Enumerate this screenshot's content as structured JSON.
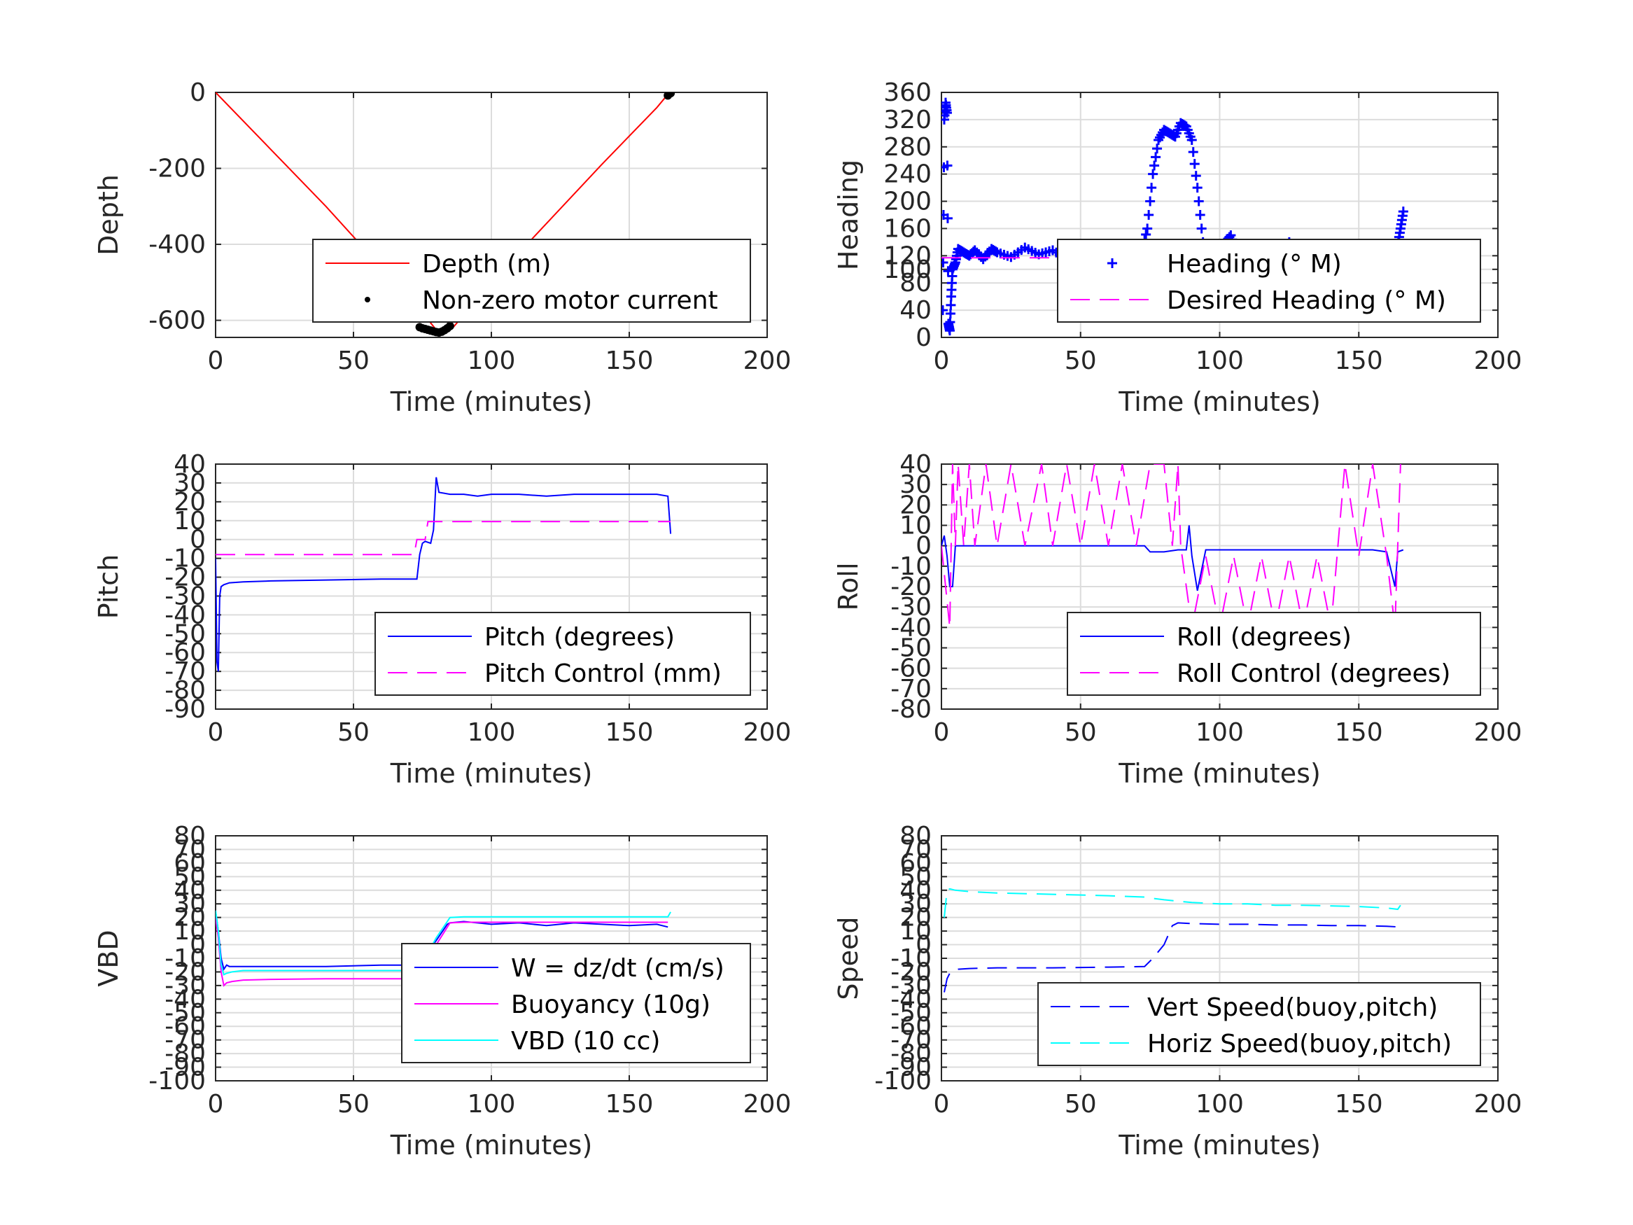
{
  "chart_data": [
    {
      "id": "depth",
      "type": "line",
      "xlabel": "Time (minutes)",
      "ylabel": "Depth",
      "xlim": [
        0,
        200
      ],
      "ylim": [
        -645,
        0
      ],
      "xticks": [
        0,
        50,
        100,
        150,
        200
      ],
      "yticks": [
        -600,
        -400,
        -200,
        0
      ],
      "xticklabels": [
        "0",
        "50",
        "100",
        "150",
        "200"
      ],
      "yticklabels": [
        "-600",
        "-400",
        "-200",
        "0"
      ],
      "grid": true,
      "legend_position": "bottom-right",
      "series": [
        {
          "name": "Depth (m)",
          "color": "#ff0000",
          "style": "solid",
          "marker": "none",
          "x": [
            0,
            20,
            40,
            60,
            75,
            80,
            82,
            86,
            100,
            120,
            140,
            160,
            164
          ],
          "y": [
            0,
            -150,
            -300,
            -460,
            -580,
            -625,
            -630,
            -620,
            -500,
            -345,
            -190,
            -40,
            -5
          ]
        },
        {
          "name": "Non-zero motor current",
          "color": "#000000",
          "style": "none",
          "marker": "dot",
          "x": [
            74,
            75,
            76,
            77,
            78,
            79,
            80,
            81,
            82,
            83,
            84,
            85,
            164,
            165
          ],
          "y": [
            -618,
            -621,
            -623,
            -625,
            -627,
            -629,
            -631,
            -632,
            -630,
            -626,
            -621,
            -615,
            -8,
            -2
          ]
        }
      ]
    },
    {
      "id": "heading",
      "type": "line",
      "xlabel": "Time (minutes)",
      "ylabel": "Heading",
      "xlim": [
        0,
        200
      ],
      "ylim": [
        0,
        360
      ],
      "xticks": [
        0,
        50,
        100,
        150,
        200
      ],
      "yticks": [
        0,
        40,
        80,
        100,
        120,
        160,
        200,
        240,
        280,
        320,
        360
      ],
      "xticklabels": [
        "0",
        "50",
        "100",
        "150",
        "200"
      ],
      "yticklabels": [
        "0",
        "40",
        "80",
        "100",
        "120",
        "160",
        "200",
        "240",
        "280",
        "320",
        "360"
      ],
      "grid": true,
      "legend_position": "bottom-right",
      "series": [
        {
          "name": "Heading (° M)",
          "color": "#0000ff",
          "style": "none",
          "marker": "plus",
          "x": [
            0.5,
            1,
            1.5,
            2,
            2.5,
            3,
            3.5,
            4,
            5,
            6,
            8,
            10,
            12,
            15,
            18,
            20,
            25,
            30,
            35,
            40,
            45,
            50,
            55,
            60,
            65,
            70,
            72,
            74,
            76,
            78,
            80,
            82,
            84,
            86,
            88,
            90,
            92,
            94,
            96,
            98,
            100,
            102,
            104,
            106,
            108,
            110,
            115,
            120,
            125,
            130,
            135,
            140,
            145,
            150,
            155,
            160,
            162,
            164,
            165,
            166
          ],
          "y": [
            40,
            320,
            345,
            330,
            20,
            10,
            60,
            100,
            110,
            130,
            125,
            120,
            128,
            115,
            130,
            125,
            118,
            132,
            122,
            128,
            115,
            125,
            130,
            120,
            127,
            120,
            125,
            160,
            240,
            290,
            305,
            300,
            295,
            315,
            310,
            290,
            220,
            140,
            100,
            110,
            120,
            140,
            150,
            125,
            115,
            120,
            128,
            118,
            140,
            120,
            125,
            118,
            130,
            122,
            128,
            115,
            120,
            135,
            160,
            185
          ]
        },
        {
          "name": "Desired Heading (° M)",
          "color": "#ff00ff",
          "style": "dashed",
          "marker": "none",
          "x": [
            0,
            166
          ],
          "y": [
            117,
            117
          ]
        }
      ]
    },
    {
      "id": "pitch",
      "type": "line",
      "xlabel": "Time (minutes)",
      "ylabel": "Pitch",
      "xlim": [
        0,
        200
      ],
      "ylim": [
        -90,
        40
      ],
      "xticks": [
        0,
        50,
        100,
        150,
        200
      ],
      "yticks": [
        -90,
        -80,
        -70,
        -60,
        -50,
        -40,
        -30,
        -20,
        -10,
        0,
        10,
        20,
        30,
        40
      ],
      "xticklabels": [
        "0",
        "50",
        "100",
        "150",
        "200"
      ],
      "yticklabels": [
        "-90",
        "-80",
        "-70",
        "-60",
        "-50",
        "-40",
        "-30",
        "-20",
        "-10",
        "0",
        "10",
        "20",
        "30",
        "40"
      ],
      "grid": true,
      "legend_position": "bottom-right",
      "series": [
        {
          "name": "Pitch (degrees)",
          "color": "#0000ff",
          "style": "solid",
          "marker": "none",
          "x": [
            0,
            0.5,
            1,
            1.5,
            2,
            3,
            5,
            10,
            20,
            40,
            60,
            73,
            74,
            75,
            76,
            78,
            79,
            80,
            81,
            85,
            90,
            95,
            100,
            110,
            120,
            130,
            140,
            150,
            160,
            164,
            165
          ],
          "y": [
            -10,
            -65,
            -70,
            -30,
            -25,
            -24,
            -23,
            -22.5,
            -22,
            -21.5,
            -21,
            -21,
            -8,
            -2,
            -1,
            -2,
            5,
            33,
            25,
            24,
            24,
            23,
            24,
            24,
            23,
            24,
            24,
            24,
            24,
            23,
            3
          ]
        },
        {
          "name": "Pitch Control (mm)",
          "color": "#ff00ff",
          "style": "dashed",
          "marker": "none",
          "x": [
            0,
            72,
            73,
            76,
            77,
            165
          ],
          "y": [
            -8,
            -8,
            0,
            0,
            9.5,
            9.5
          ]
        }
      ]
    },
    {
      "id": "roll",
      "type": "line",
      "xlabel": "Time (minutes)",
      "ylabel": "Roll",
      "xlim": [
        0,
        200
      ],
      "ylim": [
        -80,
        40
      ],
      "xticks": [
        0,
        50,
        100,
        150,
        200
      ],
      "yticks": [
        -80,
        -70,
        -60,
        -50,
        -40,
        -30,
        -20,
        -10,
        0,
        10,
        20,
        30,
        40
      ],
      "xticklabels": [
        "0",
        "50",
        "100",
        "150",
        "200"
      ],
      "yticklabels": [
        "-80",
        "-70",
        "-60",
        "-50",
        "-40",
        "-30",
        "-20",
        "-10",
        "0",
        "10",
        "20",
        "30",
        "40"
      ],
      "grid": true,
      "legend_position": "bottom-right",
      "series": [
        {
          "name": "Roll (degrees)",
          "color": "#0000ff",
          "style": "solid",
          "marker": "none",
          "x": [
            0,
            1,
            2,
            3,
            4,
            5,
            6,
            7,
            10,
            15,
            20,
            25,
            30,
            40,
            50,
            60,
            70,
            73,
            75,
            80,
            85,
            88,
            89,
            90,
            92,
            95,
            100,
            110,
            120,
            130,
            140,
            150,
            155,
            160,
            163,
            164,
            166
          ],
          "y": [
            0,
            5,
            -5,
            -20,
            -20,
            0,
            0,
            0,
            0,
            0,
            0,
            0,
            0,
            0,
            0,
            0,
            0,
            0,
            -3,
            -3,
            -2,
            -2,
            10,
            -5,
            -22,
            -2,
            -2,
            -2,
            -2,
            -2,
            -2,
            -2,
            -2,
            -3,
            -20,
            -3,
            -2
          ]
        },
        {
          "name": "Roll Control (degrees)",
          "color": "#ff00ff",
          "style": "dashed",
          "marker": "none",
          "x": [
            0,
            3,
            4,
            5,
            6,
            8,
            10,
            12,
            16,
            20,
            25,
            30,
            36,
            40,
            45,
            50,
            55,
            60,
            65,
            70,
            75,
            80,
            83,
            85,
            86,
            90,
            95,
            100,
            105,
            110,
            115,
            120,
            125,
            130,
            135,
            140,
            145,
            150,
            155,
            160,
            163,
            165
          ],
          "y": [
            0,
            -40,
            40,
            0,
            40,
            0,
            40,
            0,
            40,
            0,
            40,
            0,
            40,
            0,
            40,
            0,
            40,
            0,
            40,
            0,
            40,
            40,
            0,
            40,
            0,
            -40,
            -5,
            -40,
            -5,
            -40,
            -5,
            -40,
            -5,
            -40,
            -5,
            -40,
            40,
            -5,
            40,
            -5,
            -40,
            40
          ]
        }
      ]
    },
    {
      "id": "vbd",
      "type": "line",
      "xlabel": "Time (minutes)",
      "ylabel": "VBD",
      "xlim": [
        0,
        200
      ],
      "ylim": [
        -100,
        80
      ],
      "xticks": [
        0,
        50,
        100,
        150,
        200
      ],
      "yticks": [
        -100,
        -90,
        -80,
        -70,
        -60,
        -50,
        -40,
        -30,
        -20,
        -10,
        0,
        10,
        20,
        30,
        40,
        50,
        60,
        70,
        80
      ],
      "xticklabels": [
        "0",
        "50",
        "100",
        "150",
        "200"
      ],
      "yticklabels": [
        "-100",
        "-90",
        "-80",
        "-70",
        "-60",
        "-50",
        "-40",
        "-30",
        "-20",
        "-10",
        "0",
        "10",
        "20",
        "30",
        "40",
        "50",
        "60",
        "70",
        "80"
      ],
      "grid": true,
      "legend_position": "bottom-right",
      "series": [
        {
          "name": "W = dz/dt (cm/s)",
          "color": "#0000ff",
          "style": "solid",
          "marker": "none",
          "x": [
            0,
            1,
            2,
            3,
            4,
            5,
            10,
            20,
            40,
            60,
            73,
            75,
            80,
            84,
            85,
            90,
            95,
            100,
            110,
            120,
            130,
            140,
            150,
            160,
            164
          ],
          "y": [
            25,
            10,
            -10,
            -18,
            -15,
            -16,
            -16,
            -16,
            -16,
            -15,
            -15,
            -10,
            3,
            15,
            16,
            17,
            16,
            15,
            16,
            14,
            16,
            15,
            14,
            15,
            13
          ]
        },
        {
          "name": "Buoyancy (10g)",
          "color": "#ff00ff",
          "style": "solid",
          "marker": "none",
          "x": [
            0,
            1,
            2,
            3,
            4,
            6,
            10,
            20,
            40,
            60,
            73,
            76,
            80,
            85,
            90,
            100,
            120,
            140,
            160,
            164
          ],
          "y": [
            20,
            5,
            -20,
            -30,
            -28,
            -27,
            -26,
            -25.5,
            -25,
            -25,
            -25,
            -15,
            0,
            16,
            16.5,
            16.5,
            16.5,
            16.5,
            16.5,
            16.5
          ]
        },
        {
          "name": "VBD (10 cc)",
          "color": "#00ffff",
          "style": "solid",
          "marker": "none",
          "x": [
            0,
            1,
            2,
            3,
            4,
            6,
            10,
            20,
            40,
            60,
            73,
            76,
            80,
            85,
            90,
            100,
            120,
            140,
            160,
            164,
            165
          ],
          "y": [
            25,
            10,
            -15,
            -22,
            -21,
            -20,
            -19,
            -19,
            -19,
            -19,
            -19,
            -10,
            5,
            20,
            20.5,
            20.5,
            20.5,
            20.5,
            20.5,
            20.5,
            24
          ]
        }
      ]
    },
    {
      "id": "speed",
      "type": "line",
      "xlabel": "Time (minutes)",
      "ylabel": "Speed",
      "xlim": [
        0,
        200
      ],
      "ylim": [
        -100,
        80
      ],
      "xticks": [
        0,
        50,
        100,
        150,
        200
      ],
      "yticks": [
        -100,
        -90,
        -80,
        -70,
        -60,
        -50,
        -40,
        -30,
        -20,
        -10,
        0,
        10,
        20,
        30,
        40,
        50,
        60,
        70,
        80
      ],
      "xticklabels": [
        "0",
        "50",
        "100",
        "150",
        "200"
      ],
      "yticklabels": [
        "-100",
        "-90",
        "-80",
        "-70",
        "-60",
        "-50",
        "-40",
        "-30",
        "-20",
        "-10",
        "0",
        "10",
        "20",
        "30",
        "40",
        "50",
        "60",
        "70",
        "80"
      ],
      "grid": true,
      "legend_position": "bottom-right",
      "series": [
        {
          "name": "Vert Speed(buoy,pitch)",
          "color": "#0000ff",
          "style": "dashed",
          "marker": "none",
          "x": [
            1,
            2,
            3,
            4,
            6,
            10,
            20,
            40,
            60,
            73,
            76,
            80,
            83,
            85,
            90,
            100,
            110,
            120,
            130,
            140,
            150,
            160,
            165
          ],
          "y": [
            -35,
            -25,
            -21,
            -19,
            -18,
            -17.5,
            -17,
            -17,
            -16.5,
            -16,
            -10,
            0,
            14,
            16,
            15.5,
            15,
            15,
            14.5,
            14.5,
            14,
            14,
            13.5,
            13
          ]
        },
        {
          "name": "Horiz Speed(buoy,pitch)",
          "color": "#00ffff",
          "style": "dashed",
          "marker": "none",
          "x": [
            1,
            2,
            3,
            5,
            10,
            20,
            40,
            60,
            73,
            76,
            80,
            85,
            90,
            100,
            110,
            120,
            130,
            140,
            150,
            160,
            164,
            165
          ],
          "y": [
            20,
            40,
            41,
            40,
            39,
            38,
            37,
            36,
            35,
            34,
            33,
            32,
            31,
            30,
            30,
            29,
            29,
            28.5,
            28,
            27,
            26,
            29
          ]
        }
      ]
    }
  ]
}
